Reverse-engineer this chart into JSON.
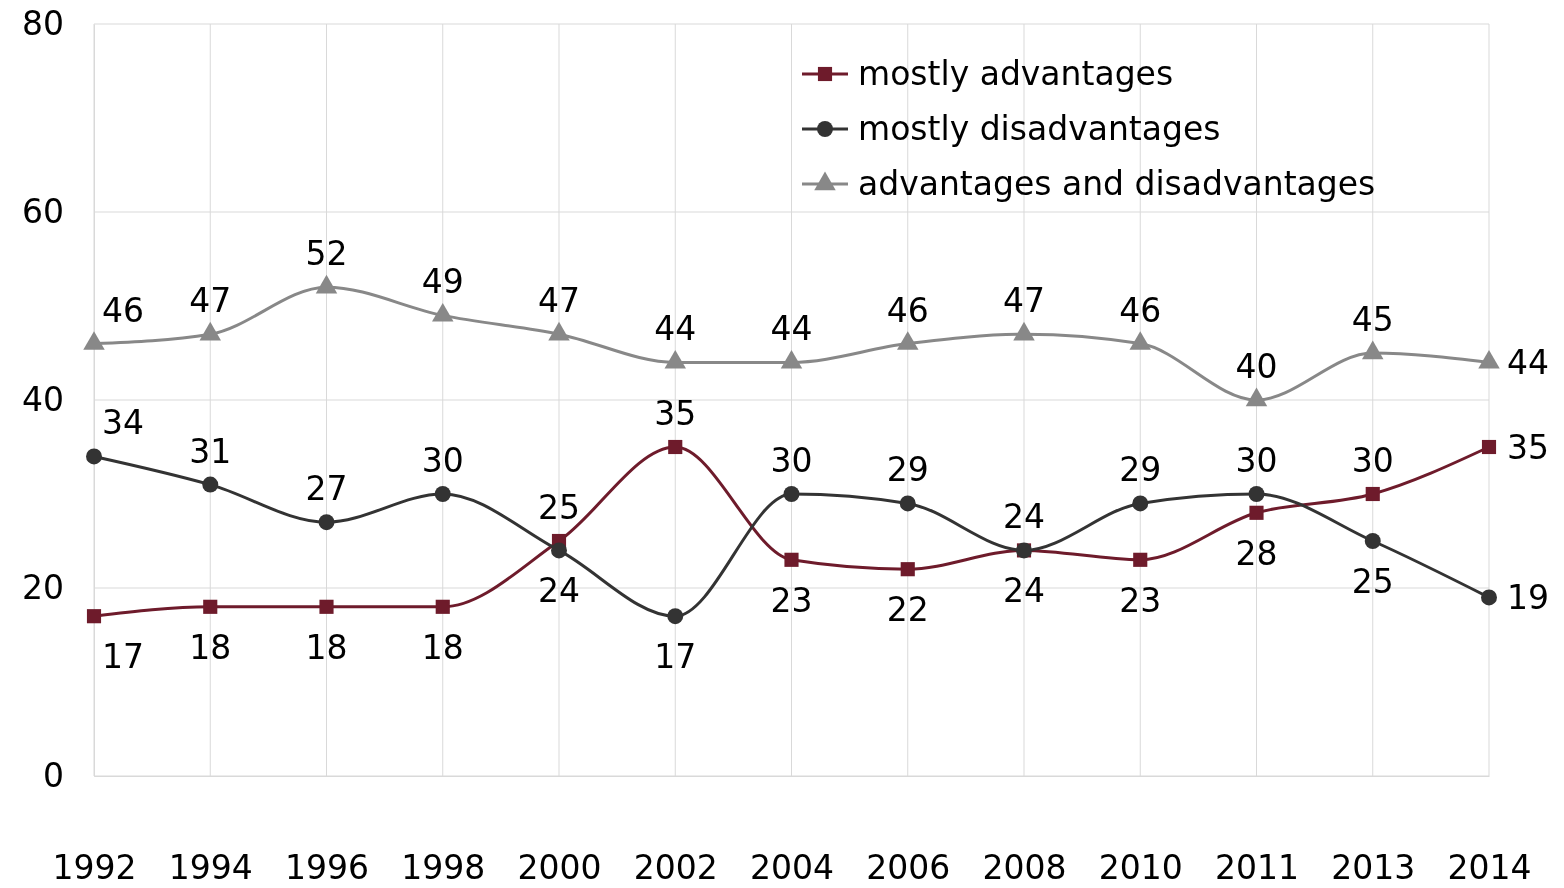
{
  "chart_data": {
    "type": "line",
    "categories": [
      "1992",
      "1994",
      "1996",
      "1998",
      "2000",
      "2002",
      "2004",
      "2006",
      "2008",
      "2010",
      "2011",
      "2013",
      "2014"
    ],
    "series": [
      {
        "name": "mostly advantages",
        "color": "#6e1b2b",
        "marker": "square",
        "values": [
          17,
          18,
          18,
          18,
          25,
          35,
          23,
          22,
          24,
          23,
          28,
          30,
          35
        ]
      },
      {
        "name": "mostly disadvantages",
        "color": "#333333",
        "marker": "circle",
        "values": [
          34,
          31,
          27,
          30,
          24,
          17,
          30,
          29,
          24,
          29,
          30,
          25,
          19
        ]
      },
      {
        "name": "advantages and disadvantages",
        "color": "#888888",
        "marker": "triangle",
        "values": [
          46,
          47,
          52,
          49,
          47,
          44,
          44,
          46,
          47,
          46,
          40,
          45,
          44
        ]
      }
    ],
    "ylim": [
      0,
      80
    ],
    "yticks": [
      0,
      20,
      40,
      60,
      80
    ],
    "grid": true,
    "legend": "top right",
    "data_labels": true
  }
}
